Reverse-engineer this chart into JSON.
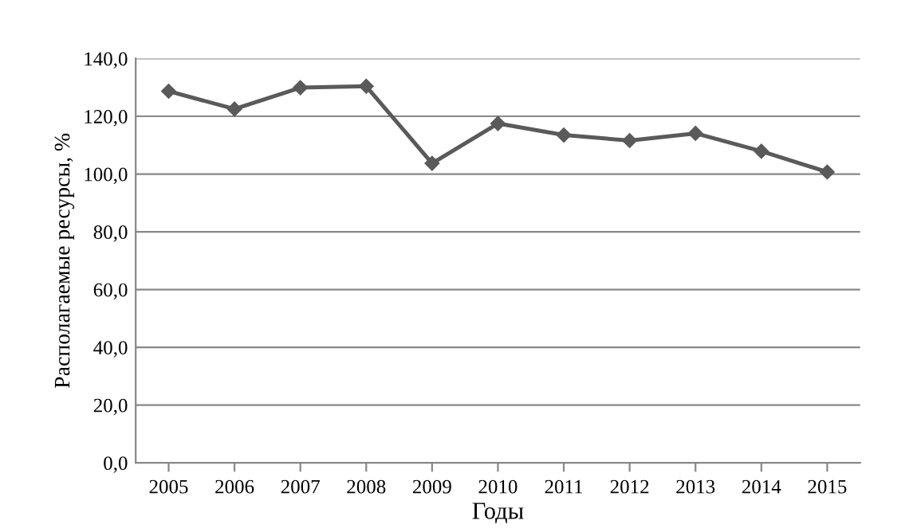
{
  "chart_data": {
    "type": "line",
    "xlabel": "Годы",
    "ylabel": "Располагаемые ресурсы, %",
    "categories": [
      "2005",
      "2006",
      "2007",
      "2008",
      "2009",
      "2010",
      "2011",
      "2012",
      "2013",
      "2014",
      "2015"
    ],
    "series": [
      {
        "color": "#5a5a5a",
        "values": [
          128.7,
          122.5,
          129.9,
          130.4,
          103.7,
          117.5,
          113.5,
          111.6,
          114.1,
          107.9,
          100.7
        ]
      }
    ],
    "ylim": [
      0,
      140
    ],
    "yticks": [
      {
        "value": 0,
        "label": "0,0"
      },
      {
        "value": 20,
        "label": "20,0"
      },
      {
        "value": 40,
        "label": "40,0"
      },
      {
        "value": 60,
        "label": "60,0"
      },
      {
        "value": 80,
        "label": "80,0"
      },
      {
        "value": 100,
        "label": "100,0"
      },
      {
        "value": 120,
        "label": "120,0"
      },
      {
        "value": 140,
        "label": "140,0"
      }
    ],
    "grid": "y",
    "marker": "diamond",
    "line_style": "solid"
  }
}
